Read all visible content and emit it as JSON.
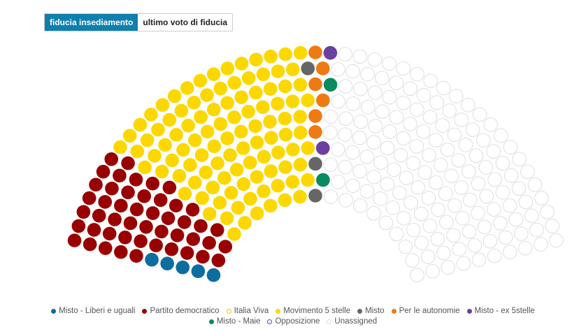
{
  "tabs": [
    "fiducia insediamento",
    "ultimo voto di fiducia"
  ],
  "chart_data": {
    "type": "parliament",
    "series": [
      {
        "name": "Misto - Liberi e uguali",
        "color": "#0b6e9f",
        "value": 5
      },
      {
        "name": "Partito democratico",
        "color": "#990000",
        "value": 48
      },
      {
        "name": "Italia Viva",
        "color": "#f2c200",
        "hollow": true,
        "value": 0
      },
      {
        "name": "Movimento 5 stelle",
        "color": "#fcd700",
        "value": 103
      },
      {
        "name": "Misto",
        "color": "#666666",
        "value": 3
      },
      {
        "name": "Per le autonomie",
        "color": "#ee7a14",
        "value": 6
      },
      {
        "name": "Misto - ex 5stelle",
        "color": "#6b3fa0",
        "value": 2
      },
      {
        "name": "Misto - Maie",
        "color": "#0a8a5f",
        "value": 2
      },
      {
        "name": "Opposizione",
        "color": "#6b3fa0",
        "hollow": true,
        "value": 0
      },
      {
        "name": "Unassigned",
        "color": "#dddddd",
        "hollow": true,
        "value": 151
      }
    ]
  }
}
